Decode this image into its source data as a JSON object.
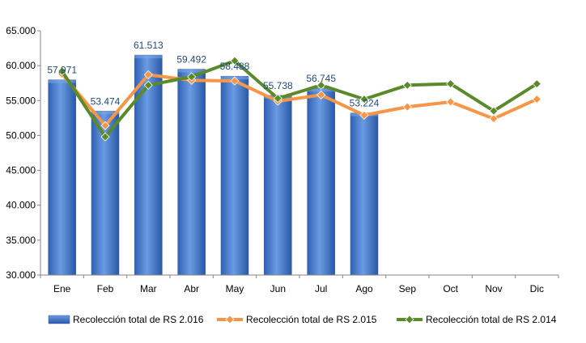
{
  "chart_data": {
    "type": "bar",
    "categories": [
      "Ene",
      "Feb",
      "Mar",
      "Abr",
      "May",
      "Jun",
      "Jul",
      "Ago",
      "Sep",
      "Oct",
      "Nov",
      "Dic"
    ],
    "ylim": [
      30000,
      65000
    ],
    "yticks": [
      30000,
      35000,
      40000,
      45000,
      50000,
      55000,
      60000,
      65000
    ],
    "ytick_labels": [
      "30.000",
      "35.000",
      "40.000",
      "45.000",
      "50.000",
      "55.000",
      "60.000",
      "65.000"
    ],
    "grid": false,
    "legend_position": "bottom",
    "series": [
      {
        "name": "Recolección total de RS 2.016",
        "kind": "bar",
        "color": "#4a7fd0",
        "values": [
          57971,
          53474,
          61513,
          59492,
          58488,
          55738,
          56745,
          53224,
          null,
          null,
          null,
          null
        ],
        "value_labels": [
          "57.971",
          "53.474",
          "61.513",
          "59.492",
          "58.488",
          "55.738",
          "56.745",
          "53.224",
          "",
          "",
          "",
          ""
        ]
      },
      {
        "name": "Recolección total de RS 2.015",
        "kind": "line",
        "color": "#f79646",
        "values": [
          58800,
          51400,
          58700,
          57900,
          57800,
          54900,
          55800,
          52900,
          54100,
          54800,
          52400,
          55200
        ]
      },
      {
        "name": "Recolección total de RS 2.014",
        "kind": "line",
        "color": "#5a8a2a",
        "values": [
          59200,
          49800,
          57200,
          58400,
          60700,
          55300,
          57200,
          55200,
          57200,
          57400,
          53500,
          57400
        ]
      }
    ]
  }
}
